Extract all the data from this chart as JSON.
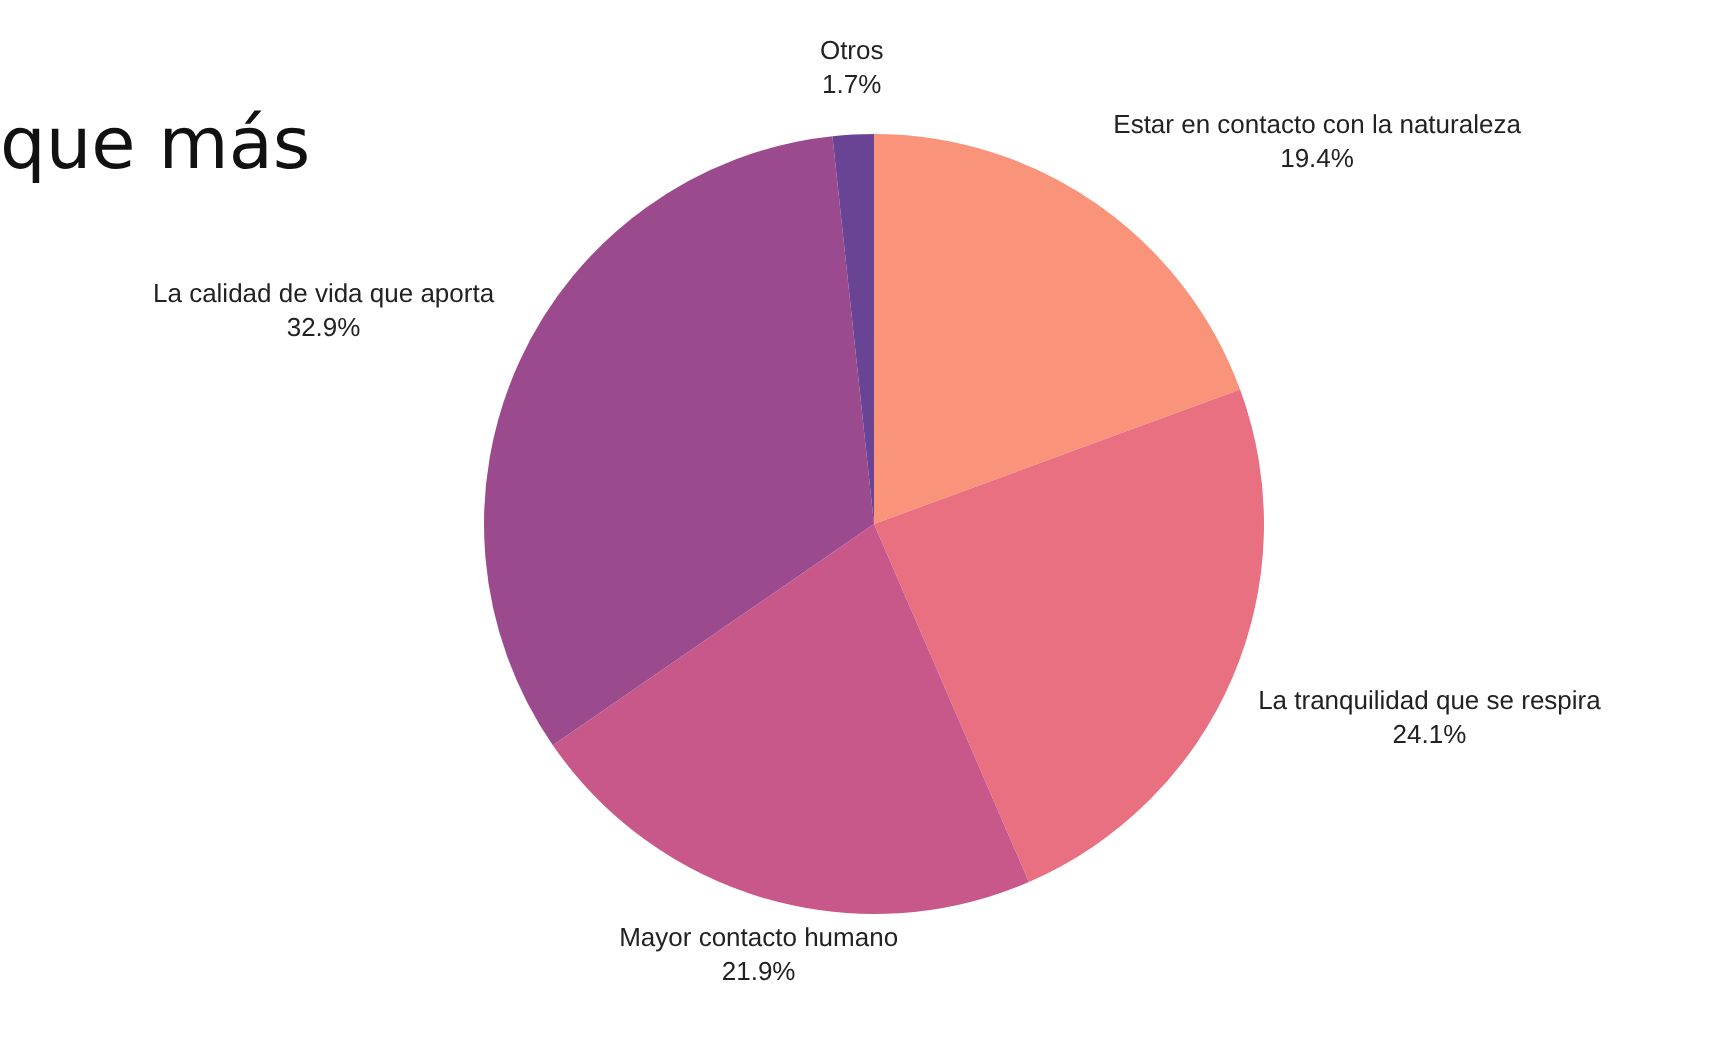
{
  "chart_data": {
    "type": "pie",
    "title": "que más",
    "categories": [
      "Estar en contacto con la naturaleza",
      "La tranquilidad que se respira",
      "Mayor contacto humano",
      "La calidad de vida que aporta",
      "Otros"
    ],
    "values": [
      19.4,
      24.1,
      21.9,
      32.9,
      1.7
    ],
    "colors": [
      "#f99379",
      "#e87080",
      "#c8588a",
      "#9c4a8e",
      "#6a4494"
    ],
    "value_labels": [
      "19.4%",
      "24.1%",
      "21.9%",
      "32.9%",
      "1.7%"
    ],
    "legend": false
  }
}
